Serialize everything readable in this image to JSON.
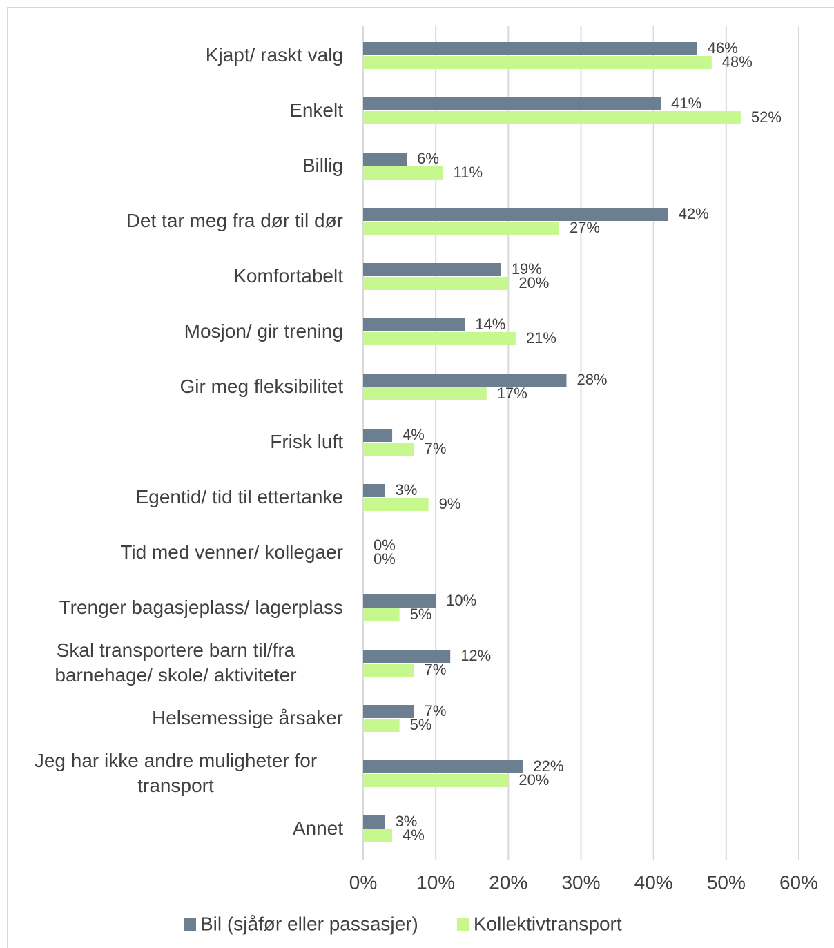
{
  "chart_data": {
    "type": "bar",
    "orientation": "horizontal",
    "categories": [
      "Kjapt/ raskt valg",
      "Enkelt",
      "Billig",
      "Det tar meg fra dør til dør",
      "Komfortabelt",
      "Mosjon/ gir trening",
      "Gir meg fleksibilitet",
      "Frisk luft",
      "Egentid/ tid til ettertanke",
      "Tid med venner/ kollegaer",
      "Trenger bagasjeplass/ lagerplass",
      "Skal transportere barn til/fra barnehage/ skole/ aktiviteter",
      "Helsemessige årsaker",
      "Jeg har ikke andre muligheter for transport",
      "Annet"
    ],
    "series": [
      {
        "name": "Bil (sjåfør eller passasjer)",
        "color": "#6b7f91",
        "values": [
          46,
          41,
          6,
          42,
          19,
          14,
          28,
          4,
          3,
          0,
          10,
          12,
          7,
          22,
          3
        ],
        "value_labels": [
          "46%",
          "41%",
          "6%",
          "42%",
          "19%",
          "14%",
          "28%",
          "4%",
          "3%",
          "0%",
          "10%",
          "12%",
          "7%",
          "22%",
          "3%"
        ]
      },
      {
        "name": "Kollektivtransport",
        "color": "#c6f88f",
        "values": [
          48,
          52,
          11,
          27,
          20,
          21,
          17,
          7,
          9,
          0,
          5,
          7,
          5,
          20,
          4
        ],
        "value_labels": [
          "48%",
          "52%",
          "11%",
          "27%",
          "20%",
          "21%",
          "17%",
          "7%",
          "9%",
          "0%",
          "5%",
          "7%",
          "5%",
          "20%",
          "4%"
        ]
      }
    ],
    "xlim": [
      0,
      60
    ],
    "xticks": [
      {
        "value": 0,
        "label": "0%"
      },
      {
        "value": 10,
        "label": "10%"
      },
      {
        "value": 20,
        "label": "20%"
      },
      {
        "value": 30,
        "label": "30%"
      },
      {
        "value": 40,
        "label": "40%"
      },
      {
        "value": 50,
        "label": "50%"
      },
      {
        "value": 60,
        "label": "60%"
      }
    ],
    "grid": true,
    "legend": "bottom"
  }
}
